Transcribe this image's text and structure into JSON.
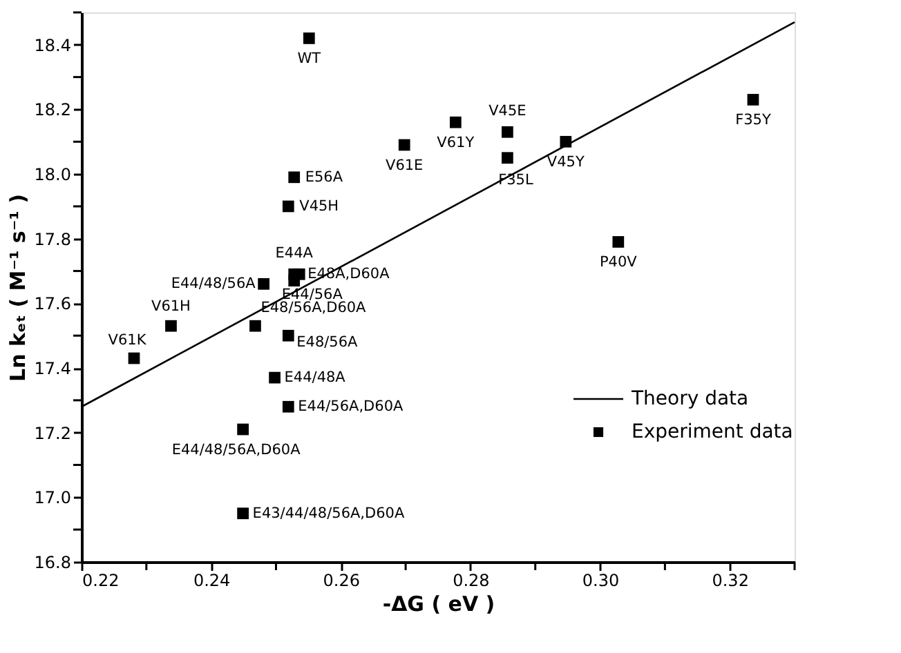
{
  "chart_data": {
    "type": "scatter",
    "xlabel": "-ΔG ( eV )",
    "ylabel": "Ln kₑₜ ( M⁻¹ s⁻¹ )",
    "xlim": [
      0.22,
      0.33
    ],
    "ylim": [
      16.8,
      18.5
    ],
    "xticks": [
      0.22,
      {
        "value": 0.23,
        "label": null
      },
      0.24,
      {
        "value": 0.25,
        "label": null
      },
      0.26,
      {
        "value": 0.27,
        "label": null
      },
      0.28,
      {
        "value": 0.29,
        "label": null
      },
      {
        "value": 0.3,
        "label": "0.30"
      },
      {
        "value": 0.31,
        "label": null
      },
      0.32,
      {
        "value": 0.33,
        "label": null
      }
    ],
    "yticks": [
      16.8,
      {
        "value": 16.9,
        "label": null
      },
      {
        "value": 17.0,
        "label": "17.0"
      },
      {
        "value": 17.1,
        "label": null
      },
      17.2,
      {
        "value": 17.3,
        "label": null
      },
      17.4,
      {
        "value": 17.5,
        "label": null
      },
      17.6,
      {
        "value": 17.7,
        "label": null
      },
      17.8,
      {
        "value": 17.9,
        "label": null
      },
      {
        "value": 18.0,
        "label": "18.0"
      },
      {
        "value": 18.1,
        "label": null
      },
      18.2,
      {
        "value": 18.3,
        "label": null
      },
      18.4,
      {
        "value": 18.5,
        "label": null
      }
    ],
    "grid": false,
    "legend": "bottom right",
    "series": [
      {
        "name": "Theory data",
        "type": "line",
        "color": "#000000",
        "marker": "none",
        "line_style": "solid",
        "x": [
          0.22,
          0.33
        ],
        "values": [
          17.28,
          18.47
        ]
      },
      {
        "name": "Experiment data",
        "type": "scatter",
        "color": "#000000",
        "marker": "square",
        "x": [
          0.2551,
          0.2528,
          0.2519,
          0.2698,
          0.2777,
          0.2857,
          0.2857,
          0.2947,
          0.3236,
          0.3028,
          0.2528,
          0.2536,
          0.2528,
          0.2481,
          0.2338,
          0.2468,
          0.2519,
          0.2281,
          0.2498,
          0.2519,
          0.2449,
          0.2449
        ],
        "values": [
          18.42,
          17.99,
          17.9,
          18.09,
          18.16,
          18.13,
          18.05,
          18.1,
          18.23,
          17.79,
          17.69,
          17.69,
          17.67,
          17.66,
          17.53,
          17.53,
          17.5,
          17.43,
          17.37,
          17.28,
          17.21,
          16.95
        ]
      }
    ],
    "annotations": [
      {
        "text": "WT",
        "x": 0.2551,
        "y": 18.42
      },
      {
        "text": "E56A",
        "x": 0.2528,
        "y": 17.99
      },
      {
        "text": "V45H",
        "x": 0.2519,
        "y": 17.9
      },
      {
        "text": "V61E",
        "x": 0.2698,
        "y": 18.09
      },
      {
        "text": "V61Y",
        "x": 0.2777,
        "y": 18.16
      },
      {
        "text": "V45E",
        "x": 0.2857,
        "y": 18.13
      },
      {
        "text": "F35L",
        "x": 0.2857,
        "y": 18.05
      },
      {
        "text": "V45Y",
        "x": 0.2947,
        "y": 18.1
      },
      {
        "text": "F35Y",
        "x": 0.3236,
        "y": 18.23
      },
      {
        "text": "P40V",
        "x": 0.3028,
        "y": 17.79
      },
      {
        "text": "E44A",
        "x": 0.2528,
        "y": 17.69
      },
      {
        "text": "E48A,D60A",
        "x": 0.2536,
        "y": 17.69
      },
      {
        "text": "E44/56A",
        "x": 0.2528,
        "y": 17.67
      },
      {
        "text": "E44/48/56A",
        "x": 0.2481,
        "y": 17.66
      },
      {
        "text": "V61H",
        "x": 0.2338,
        "y": 17.53
      },
      {
        "text": "E48/56A,D60A",
        "x": 0.2468,
        "y": 17.53
      },
      {
        "text": "E48/56A",
        "x": 0.2519,
        "y": 17.5
      },
      {
        "text": "V61K",
        "x": 0.2281,
        "y": 17.43
      },
      {
        "text": "E44/48A",
        "x": 0.2498,
        "y": 17.37
      },
      {
        "text": "E44/56A,D60A",
        "x": 0.2519,
        "y": 17.28
      },
      {
        "text": "E44/48/56A,D60A",
        "x": 0.2449,
        "y": 17.21
      },
      {
        "text": "E43/44/48/56A,D60A",
        "x": 0.2449,
        "y": 16.95
      }
    ]
  }
}
